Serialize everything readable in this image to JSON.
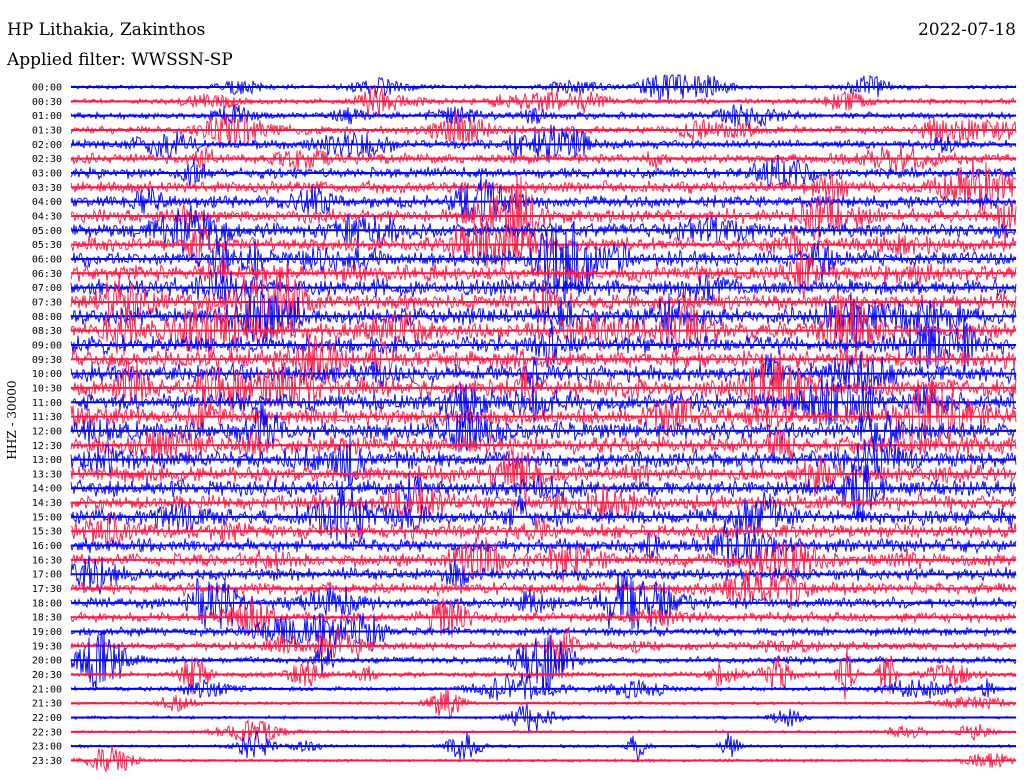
{
  "header": {
    "station": "HP Lithakia, Zakinthos",
    "date": "2022-07-18",
    "filter": "Applied filter: WWSSN-SP"
  },
  "chart_data": {
    "type": "line",
    "subtype": "helicorder",
    "ylabel": "HHZ - 30000",
    "tick_labels": [
      "00:00",
      "00:30",
      "01:00",
      "01:30",
      "02:00",
      "02:30",
      "03:00",
      "03:30",
      "04:00",
      "04:30",
      "05:00",
      "05:30",
      "06:00",
      "06:30",
      "07:00",
      "07:30",
      "08:00",
      "08:30",
      "09:00",
      "09:30",
      "10:00",
      "10:30",
      "11:00",
      "11:30",
      "12:00",
      "12:30",
      "13:00",
      "13:30",
      "14:00",
      "14:30",
      "15:00",
      "15:30",
      "16:00",
      "16:30",
      "17:00",
      "17:30",
      "18:00",
      "18:30",
      "19:00",
      "19:30",
      "20:00",
      "20:30",
      "21:00",
      "21:30",
      "22:00",
      "22:30",
      "23:00",
      "23:30"
    ],
    "series_colors": [
      "#0000ff",
      "#ff1744"
    ],
    "grid": false
  }
}
